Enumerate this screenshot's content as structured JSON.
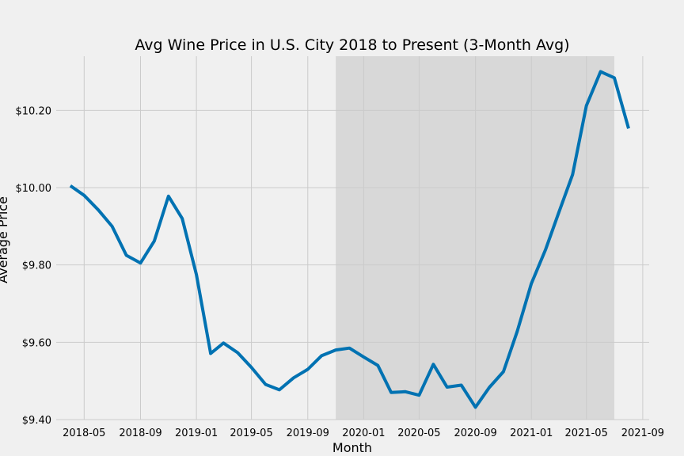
{
  "chart_data": {
    "type": "line",
    "title": "Avg Wine Price in U.S. City 2018 to Present (3-Month Avg)",
    "xlabel": "Month",
    "ylabel": "Average Price",
    "ylim": [
      9.4,
      10.34
    ],
    "xlim": [
      "2018-03-01",
      "2021-09-15"
    ],
    "grid": true,
    "line_color": "#0072b2",
    "shaded_color": "#d8d8d8",
    "shaded_region": [
      "2019-11-01",
      "2021-07-01"
    ],
    "x_ticks": [
      "2018-05",
      "2018-09",
      "2019-01",
      "2019-05",
      "2019-09",
      "2020-01",
      "2020-05",
      "2020-09",
      "2021-01",
      "2021-05",
      "2021-09"
    ],
    "y_ticks": [
      "$9.40",
      "$9.60",
      "$9.80",
      "$10.00",
      "$10.20"
    ],
    "series": [
      {
        "x": [
          "2018-04",
          "2018-05",
          "2018-06",
          "2018-07",
          "2018-08",
          "2018-09",
          "2018-10",
          "2018-11",
          "2018-12",
          "2019-01",
          "2019-02",
          "2019-03",
          "2019-04",
          "2019-05",
          "2019-06",
          "2019-07",
          "2019-08",
          "2019-09",
          "2019-10",
          "2019-11",
          "2019-12",
          "2020-01",
          "2020-02",
          "2020-03",
          "2020-04",
          "2020-05",
          "2020-06",
          "2020-07",
          "2020-08",
          "2020-09",
          "2020-10",
          "2020-11",
          "2020-12",
          "2021-01",
          "2021-02",
          "2021-03",
          "2021-04",
          "2021-05",
          "2021-06",
          "2021-07",
          "2021-08"
        ],
        "values": [
          10.005,
          9.98,
          9.942,
          9.9,
          9.825,
          9.805,
          9.862,
          9.978,
          9.92,
          9.775,
          9.571,
          9.598,
          9.573,
          9.535,
          9.491,
          9.477,
          9.508,
          9.53,
          9.565,
          9.58,
          9.585,
          9.562,
          9.54,
          9.47,
          9.472,
          9.463,
          9.543,
          9.484,
          9.489,
          9.432,
          9.483,
          9.524,
          9.628,
          9.752,
          9.84,
          9.933,
          10.034,
          10.212,
          10.3,
          10.284,
          10.153
        ]
      }
    ]
  }
}
